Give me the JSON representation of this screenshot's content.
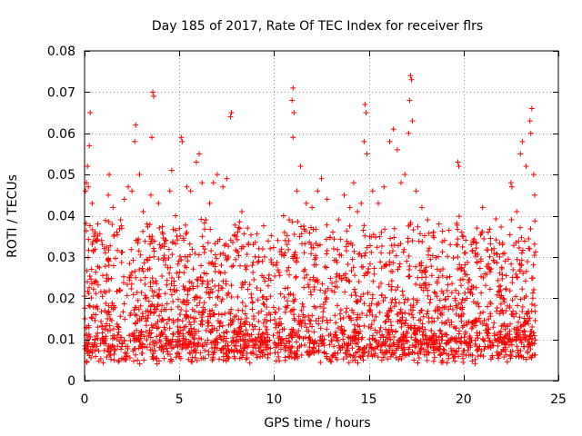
{
  "chart_data": {
    "type": "scatter",
    "title": "Day 185 of 2017, Rate Of TEC Index for receiver flrs",
    "xlabel": "GPS time / hours",
    "ylabel": "ROTI / TECUs",
    "xlim": [
      0,
      25
    ],
    "ylim": [
      0,
      0.08
    ],
    "x_ticks": [
      0,
      5,
      10,
      15,
      20,
      25
    ],
    "x_tick_labels": [
      "0",
      "5",
      "10",
      "15",
      "20",
      "25"
    ],
    "y_ticks": [
      0,
      0.01,
      0.02,
      0.03,
      0.04,
      0.05,
      0.06,
      0.07,
      0.08
    ],
    "y_tick_labels": [
      "0",
      "0.01",
      "0.02",
      "0.03",
      "0.04",
      "0.05",
      "0.06",
      "0.07",
      "0.08"
    ],
    "grid": true,
    "marker": "+",
    "marker_color": "#ff0000",
    "series": [
      {
        "points": [
          [
            0.05,
            0.046
          ],
          [
            0.1,
            0.048
          ],
          [
            0.15,
            0.052
          ],
          [
            0.2,
            0.047
          ],
          [
            0.3,
            0.065
          ],
          [
            0.25,
            0.057
          ],
          [
            0.4,
            0.043
          ],
          [
            0.55,
            0.036
          ],
          [
            0.7,
            0.038
          ],
          [
            0.9,
            0.034
          ],
          [
            1.1,
            0.031
          ],
          [
            1.3,
            0.05
          ],
          [
            1.25,
            0.045
          ],
          [
            1.5,
            0.042
          ],
          [
            1.7,
            0.036
          ],
          [
            1.9,
            0.039
          ],
          [
            2.1,
            0.044
          ],
          [
            2.3,
            0.047
          ],
          [
            2.5,
            0.046
          ],
          [
            2.7,
            0.062
          ],
          [
            2.65,
            0.058
          ],
          [
            2.9,
            0.05
          ],
          [
            3.1,
            0.041
          ],
          [
            3.3,
            0.038
          ],
          [
            3.5,
            0.045
          ],
          [
            3.6,
            0.07
          ],
          [
            3.65,
            0.069
          ],
          [
            3.55,
            0.059
          ],
          [
            3.9,
            0.043
          ],
          [
            4.1,
            0.036
          ],
          [
            4.3,
            0.034
          ],
          [
            4.5,
            0.046
          ],
          [
            4.6,
            0.051
          ],
          [
            4.8,
            0.04
          ],
          [
            5.1,
            0.059
          ],
          [
            5.15,
            0.058
          ],
          [
            5.4,
            0.047
          ],
          [
            5.6,
            0.046
          ],
          [
            5.9,
            0.053
          ],
          [
            6.05,
            0.055
          ],
          [
            6.2,
            0.048
          ],
          [
            6.4,
            0.039
          ],
          [
            6.6,
            0.043
          ],
          [
            6.8,
            0.048
          ],
          [
            7.0,
            0.05
          ],
          [
            7.3,
            0.047
          ],
          [
            7.5,
            0.049
          ],
          [
            7.7,
            0.064
          ],
          [
            7.75,
            0.065
          ],
          [
            8.0,
            0.035
          ],
          [
            8.3,
            0.041
          ],
          [
            8.6,
            0.037
          ],
          [
            8.9,
            0.033
          ],
          [
            9.2,
            0.032
          ],
          [
            9.5,
            0.03
          ],
          [
            9.8,
            0.032
          ],
          [
            10.2,
            0.034
          ],
          [
            10.5,
            0.04
          ],
          [
            10.8,
            0.039
          ],
          [
            11.0,
            0.071
          ],
          [
            10.95,
            0.068
          ],
          [
            11.05,
            0.065
          ],
          [
            11.0,
            0.059
          ],
          [
            11.2,
            0.046
          ],
          [
            11.4,
            0.052
          ],
          [
            11.7,
            0.043
          ],
          [
            12.0,
            0.042
          ],
          [
            12.3,
            0.046
          ],
          [
            12.5,
            0.049
          ],
          [
            12.8,
            0.044
          ],
          [
            13.1,
            0.036
          ],
          [
            13.4,
            0.039
          ],
          [
            13.7,
            0.045
          ],
          [
            14.0,
            0.042
          ],
          [
            14.2,
            0.048
          ],
          [
            14.4,
            0.041
          ],
          [
            14.6,
            0.043
          ],
          [
            14.8,
            0.067
          ],
          [
            14.85,
            0.065
          ],
          [
            14.75,
            0.058
          ],
          [
            14.9,
            0.055
          ],
          [
            15.2,
            0.046
          ],
          [
            15.5,
            0.043
          ],
          [
            15.8,
            0.047
          ],
          [
            16.1,
            0.058
          ],
          [
            16.3,
            0.061
          ],
          [
            16.5,
            0.056
          ],
          [
            16.7,
            0.048
          ],
          [
            16.9,
            0.05
          ],
          [
            17.1,
            0.06
          ],
          [
            17.2,
            0.074
          ],
          [
            17.25,
            0.073
          ],
          [
            17.15,
            0.068
          ],
          [
            17.3,
            0.063
          ],
          [
            17.5,
            0.046
          ],
          [
            17.8,
            0.042
          ],
          [
            18.1,
            0.039
          ],
          [
            18.4,
            0.036
          ],
          [
            18.7,
            0.038
          ],
          [
            19.0,
            0.034
          ],
          [
            19.3,
            0.033
          ],
          [
            19.7,
            0.053
          ],
          [
            19.75,
            0.052
          ],
          [
            20.1,
            0.031
          ],
          [
            20.4,
            0.033
          ],
          [
            20.7,
            0.037
          ],
          [
            21.0,
            0.042
          ],
          [
            21.3,
            0.036
          ],
          [
            21.6,
            0.032
          ],
          [
            21.9,
            0.03
          ],
          [
            22.2,
            0.029
          ],
          [
            22.5,
            0.048
          ],
          [
            22.55,
            0.047
          ],
          [
            22.8,
            0.041
          ],
          [
            23.0,
            0.055
          ],
          [
            23.1,
            0.058
          ],
          [
            23.3,
            0.052
          ],
          [
            23.5,
            0.063
          ],
          [
            23.6,
            0.066
          ],
          [
            23.55,
            0.06
          ],
          [
            23.7,
            0.05
          ],
          [
            23.75,
            0.045
          ]
        ]
      }
    ]
  }
}
